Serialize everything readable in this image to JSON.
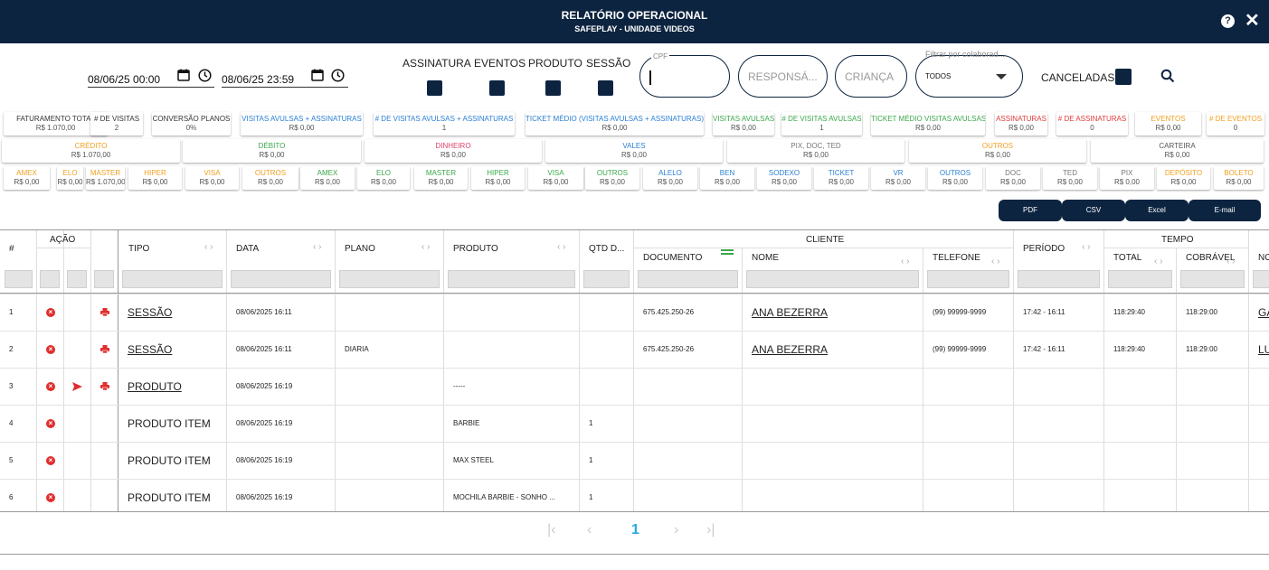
{
  "header": {
    "title": "RELATÓRIO OPERACIONAL",
    "subtitle": "SAFEPLAY - UNIDADE VIDEOS",
    "help_icon": "help-icon",
    "close_icon": "close-icon"
  },
  "filters": {
    "date_start": "08/06/25 00:00",
    "date_end": "08/06/25 23:59",
    "checkboxes": [
      "ASSINATURA",
      "EVENTOS",
      "PRODUTO",
      "SESSÃO"
    ],
    "cpf_caption": "CPF",
    "cpf_value": "",
    "responsavel_placeholder": "RESPONSÁ...",
    "crianca_placeholder": "CRIANÇA",
    "colaborador_caption": "Filtrar por colaborad...",
    "colaborador_value": "TODOS",
    "canceladas_label": "CANCELADAS"
  },
  "summary_row1": [
    {
      "label": "FATURAMENTO TOTAL",
      "value": "R$ 1.070,00",
      "color": "#333333"
    },
    {
      "label": "# DE VISITAS",
      "value": "2",
      "color": "#333333"
    },
    {
      "label": "CONVERSÃO PLANOS",
      "value": "0%",
      "color": "#333333"
    },
    {
      "label": "VISITAS AVULSAS + ASSINATURAS",
      "value": "R$ 0,00",
      "color": "#2a7fd4"
    },
    {
      "label": "# DE VISITAS AVULSAS + ASSINATURAS",
      "value": "1",
      "color": "#2a7fd4"
    },
    {
      "label": "TICKET MÉDIO (VISITAS AVULSAS + ASSINATURAS)",
      "value": "R$ 0,00",
      "color": "#2a7fd4"
    },
    {
      "label": "VISITAS AVULSAS",
      "value": "R$ 0,00",
      "color": "#3aa84a"
    },
    {
      "label": "# DE VISITAS AVULSAS",
      "value": "1",
      "color": "#3aa84a"
    },
    {
      "label": "TICKET MÉDIO VISITAS AVULSAS",
      "value": "R$ 0,00",
      "color": "#3aa84a"
    },
    {
      "label": "ASSINATURAS",
      "value": "R$ 0,00",
      "color": "#e03a3a"
    },
    {
      "label": "# DE ASSINATURAS",
      "value": "0",
      "color": "#e03a3a"
    },
    {
      "label": "EVENTOS",
      "value": "R$ 0,00",
      "color": "#f0a020"
    },
    {
      "label": "# DE EVENTOS",
      "value": "0",
      "color": "#f0a020"
    }
  ],
  "summary_row2": [
    {
      "label": "CRÉDITO",
      "value": "R$ 1.070,00",
      "color": "#f0a020"
    },
    {
      "label": "DÉBITO",
      "value": "R$ 0,00",
      "color": "#3aa84a"
    },
    {
      "label": "DINHEIRO",
      "value": "R$ 0,00",
      "color": "#e0406a"
    },
    {
      "label": "VALES",
      "value": "R$ 0,00",
      "color": "#2a7fd4"
    },
    {
      "label": "PIX, DOC, TED",
      "value": "R$ 0,00",
      "color": "#777777"
    },
    {
      "label": "OUTROS",
      "value": "R$ 0,00",
      "color": "#f0a020"
    },
    {
      "label": "CARTEIRA",
      "value": "R$ 0,00",
      "color": "#555555"
    }
  ],
  "summary_row3": [
    {
      "label": "AMEX",
      "value": "R$ 0,00",
      "color": "#f0a020"
    },
    {
      "label": "ELO",
      "value": "R$ 0,00",
      "color": "#f0a020"
    },
    {
      "label": "MASTER",
      "value": "R$ 1.070,00",
      "color": "#f0a020"
    },
    {
      "label": "HIPER",
      "value": "R$ 0,00",
      "color": "#f0a020"
    },
    {
      "label": "VISA",
      "value": "R$ 0,00",
      "color": "#f0a020"
    },
    {
      "label": "OUTROS",
      "value": "R$ 0,00",
      "color": "#f0a020"
    },
    {
      "label": "AMEX",
      "value": "R$ 0,00",
      "color": "#3aa84a"
    },
    {
      "label": "ELO",
      "value": "R$ 0,00",
      "color": "#3aa84a"
    },
    {
      "label": "MASTER",
      "value": "R$ 0,00",
      "color": "#3aa84a"
    },
    {
      "label": "HIPER",
      "value": "R$ 0,00",
      "color": "#3aa84a"
    },
    {
      "label": "VISA",
      "value": "R$ 0,00",
      "color": "#3aa84a"
    },
    {
      "label": "OUTROS",
      "value": "R$ 0,00",
      "color": "#3aa84a"
    },
    {
      "label": "ALELO",
      "value": "R$ 0,00",
      "color": "#2a7fd4"
    },
    {
      "label": "BEN",
      "value": "R$ 0,00",
      "color": "#2a7fd4"
    },
    {
      "label": "SODEXO",
      "value": "R$ 0,00",
      "color": "#2a7fd4"
    },
    {
      "label": "TICKET",
      "value": "R$ 0,00",
      "color": "#2a7fd4"
    },
    {
      "label": "VR",
      "value": "R$ 0,00",
      "color": "#2a7fd4"
    },
    {
      "label": "OUTROS",
      "value": "R$ 0,00",
      "color": "#2a7fd4"
    },
    {
      "label": "DOC",
      "value": "R$ 0,00",
      "color": "#777777"
    },
    {
      "label": "TED",
      "value": "R$ 0,00",
      "color": "#777777"
    },
    {
      "label": "PIX",
      "value": "R$ 0,00",
      "color": "#777777"
    },
    {
      "label": "DEPÓSITO",
      "value": "R$ 0,00",
      "color": "#f0a020"
    },
    {
      "label": "BOLETO",
      "value": "R$ 0,00",
      "color": "#f0a020"
    }
  ],
  "export": [
    "PDF",
    "CSV",
    "Excel",
    "E-mail"
  ],
  "table": {
    "headers": {
      "num": "#",
      "acao": "AÇÃO",
      "tipo": "TIPO",
      "data": "DATA",
      "plano": "PLANO",
      "produto": "PRODUTO",
      "qtd": "QTD D...",
      "cliente": "CLIENTE",
      "documento": "DOCUMENTO",
      "nome": "NOME",
      "telefone": "TELEFONE",
      "periodo": "PERÍODO",
      "tempo": "TEMPO",
      "total": "TOTAL",
      "cobravel": "COBRÁVEL",
      "no": "NO"
    },
    "rows": [
      {
        "num": "1",
        "tipo": "SESSÃO",
        "data": "08/06/2025 16:11",
        "plano": "",
        "produto": "",
        "qtd": "",
        "documento": "675.425.250-26",
        "nome": "ANA BEZERRA",
        "telefone": "(99) 99999-9999",
        "periodo": "17:42 - 16:11",
        "total": "118:29:40",
        "cobravel": "118:29:00",
        "no": "GA"
      },
      {
        "num": "2",
        "tipo": "SESSÃO",
        "data": "08/06/2025 16:11",
        "plano": "DIARIA",
        "produto": "",
        "qtd": "",
        "documento": "675.425.250-26",
        "nome": "ANA BEZERRA",
        "telefone": "(99) 99999-9999",
        "periodo": "17:42 - 16:11",
        "total": "118:29:40",
        "cobravel": "118:29:00",
        "no": "LU"
      },
      {
        "num": "3",
        "tipo": "PRODUTO",
        "data": "08/06/2025 16:19",
        "plano": "",
        "produto": "-----",
        "qtd": "",
        "documento": "",
        "nome": "",
        "telefone": "",
        "periodo": "",
        "total": "",
        "cobravel": "",
        "no": ""
      },
      {
        "num": "4",
        "tipo": "PRODUTO ITEM",
        "data": "08/06/2025 16:19",
        "plano": "",
        "produto": "BARBIE",
        "qtd": "1",
        "documento": "",
        "nome": "",
        "telefone": "",
        "periodo": "",
        "total": "",
        "cobravel": "",
        "no": ""
      },
      {
        "num": "5",
        "tipo": "PRODUTO ITEM",
        "data": "08/06/2025 16:19",
        "plano": "",
        "produto": "MAX STEEL",
        "qtd": "1",
        "documento": "",
        "nome": "",
        "telefone": "",
        "periodo": "",
        "total": "",
        "cobravel": "",
        "no": ""
      },
      {
        "num": "6",
        "tipo": "PRODUTO ITEM",
        "data": "08/06/2025 16:19",
        "plano": "",
        "produto": "MOCHILA BARBIE - SONHO ...",
        "qtd": "1",
        "documento": "",
        "nome": "",
        "telefone": "",
        "periodo": "",
        "total": "",
        "cobravel": "",
        "no": ""
      }
    ]
  },
  "pagination": {
    "current": "1"
  }
}
